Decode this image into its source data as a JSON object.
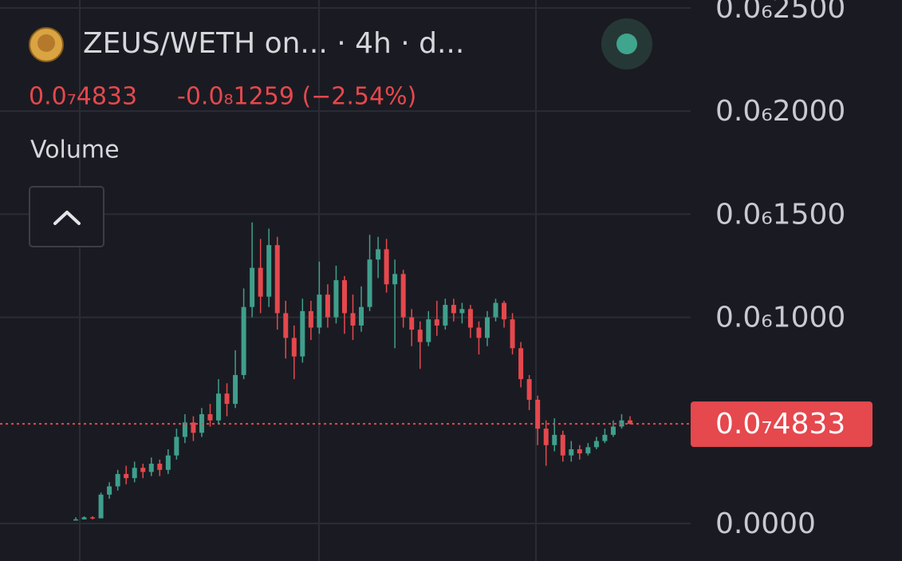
{
  "chart_data": {
    "type": "candlestick",
    "title": "ZEUS/WETH on...  · 4h · d...",
    "change": "-0.0₈1259 (−2.54%)",
    "indicator": "Volume",
    "last_price": {
      "value": 4.833e-08,
      "label": "0.0₇4833"
    },
    "up_color": "#3f9f8c",
    "down_color": "#e5484d",
    "grid": true,
    "ylim": [
      0,
      2.5e-07
    ],
    "yticks": [
      {
        "value": 0,
        "label": "0.0000"
      },
      {
        "value": 1e-07,
        "label": "0.0₆1000"
      },
      {
        "value": 1.5e-07,
        "label": "0.0₆1500"
      },
      {
        "value": 2e-07,
        "label": "0.0₆2000"
      },
      {
        "value": 2.5e-07,
        "label": "0.0₆2500"
      }
    ],
    "open": [
      2e-09,
      2e-09,
      3e-09,
      2.5e-09,
      1.4e-08,
      1.8e-08,
      2.4e-08,
      2.2e-08,
      2.7e-08,
      2.5e-08,
      2.9e-08,
      2.6e-08,
      3.3e-08,
      4.2e-08,
      4.9e-08,
      4.4e-08,
      5.3e-08,
      5e-08,
      6.3e-08,
      5.8e-08,
      7.2e-08,
      1.05e-07,
      1.24e-07,
      1.1e-07,
      1.35e-07,
      1.02e-07,
      9e-08,
      8.1e-08,
      1.03e-07,
      9.5e-08,
      1.11e-07,
      1e-07,
      1.18e-07,
      1.02e-07,
      9.6e-08,
      1.05e-07,
      1.28e-07,
      1.33e-07,
      1.16e-07,
      1.21e-07,
      1e-07,
      9.4e-08,
      8.8e-08,
      9.9e-08,
      9.6e-08,
      1.06e-07,
      1.02e-07,
      1.04e-07,
      9.5e-08,
      9e-08,
      1e-07,
      1.07e-07,
      9.9e-08,
      8.5e-08,
      7e-08,
      6e-08,
      4.6e-08,
      3.8e-08,
      4.3e-08,
      3.3e-08,
      3.6e-08,
      3.4e-08,
      3.7e-08,
      4e-08,
      4.3e-08,
      4.7e-08,
      5e-08
    ],
    "high": [
      3e-09,
      3.5e-09,
      3.5e-09,
      1.5e-08,
      2e-08,
      2.6e-08,
      2.8e-08,
      3e-08,
      2.9e-08,
      3.2e-08,
      3.1e-08,
      3.6e-08,
      4.6e-08,
      5.3e-08,
      5.2e-08,
      5.6e-08,
      5.8e-08,
      7e-08,
      6.8e-08,
      8.4e-08,
      1.14e-07,
      1.46e-07,
      1.38e-07,
      1.43e-07,
      1.39e-07,
      1.08e-07,
      9.6e-08,
      1.09e-07,
      1.08e-07,
      1.27e-07,
      1.16e-07,
      1.25e-07,
      1.2e-07,
      1.11e-07,
      1.15e-07,
      1.4e-07,
      1.39e-07,
      1.38e-07,
      1.28e-07,
      1.23e-07,
      1.04e-07,
      9.8e-08,
      1.03e-07,
      1.08e-07,
      1.09e-07,
      1.09e-07,
      1.07e-07,
      1.06e-07,
      9.8e-08,
      1.03e-07,
      1.09e-07,
      1.08e-07,
      1.02e-07,
      8.8e-08,
      7.2e-08,
      6.2e-08,
      5e-08,
      5.1e-08,
      4.5e-08,
      4e-08,
      3.8e-08,
      3.9e-08,
      4.2e-08,
      4.6e-08,
      5e-08,
      5.3e-08,
      5.2e-08
    ],
    "low": [
      1.5e-09,
      2e-09,
      2e-09,
      2.5e-09,
      1.2e-08,
      1.6e-08,
      1.9e-08,
      2e-08,
      2.2e-08,
      2.3e-08,
      2.3e-08,
      2.4e-08,
      3.1e-08,
      3.9e-08,
      4e-08,
      4.2e-08,
      4.7e-08,
      4.8e-08,
      5.2e-08,
      5.6e-08,
      7e-08,
      1e-07,
      1.02e-07,
      1.05e-07,
      9.4e-08,
      8e-08,
      7e-08,
      7.8e-08,
      8.9e-08,
      9.2e-08,
      9.5e-08,
      9.7e-08,
      9.2e-08,
      8.9e-08,
      9.3e-08,
      1.03e-07,
      1.19e-07,
      1.12e-07,
      8.5e-08,
      9.5e-08,
      8.6e-08,
      7.5e-08,
      8.6e-08,
      9.1e-08,
      9.4e-08,
      9.8e-08,
      9.7e-08,
      9e-08,
      8.2e-08,
      8.6e-08,
      9.8e-08,
      9.5e-08,
      8.2e-08,
      6.6e-08,
      5.5e-08,
      3.8e-08,
      2.8e-08,
      3.5e-08,
      3e-08,
      3e-08,
      3.1e-08,
      3.3e-08,
      3.6e-08,
      3.9e-08,
      4.2e-08,
      4.6e-08,
      4.8e-08
    ],
    "close": [
      2e-09,
      3e-09,
      2.5e-09,
      1.4e-08,
      1.8e-08,
      2.4e-08,
      2.2e-08,
      2.7e-08,
      2.5e-08,
      2.9e-08,
      2.6e-08,
      3.3e-08,
      4.2e-08,
      4.9e-08,
      4.4e-08,
      5.3e-08,
      5e-08,
      6.3e-08,
      5.8e-08,
      7.2e-08,
      1.05e-07,
      1.24e-07,
      1.1e-07,
      1.35e-07,
      1.02e-07,
      9e-08,
      8.1e-08,
      1.03e-07,
      9.5e-08,
      1.11e-07,
      1e-07,
      1.18e-07,
      1.02e-07,
      9.6e-08,
      1.05e-07,
      1.28e-07,
      1.33e-07,
      1.16e-07,
      1.21e-07,
      1e-07,
      9.4e-08,
      8.8e-08,
      9.9e-08,
      9.6e-08,
      1.06e-07,
      1.02e-07,
      1.04e-07,
      9.5e-08,
      9e-08,
      1e-07,
      1.07e-07,
      9.9e-08,
      8.5e-08,
      7e-08,
      6e-08,
      4.6e-08,
      3.8e-08,
      4.3e-08,
      3.3e-08,
      3.6e-08,
      3.4e-08,
      3.7e-08,
      4e-08,
      4.3e-08,
      4.7e-08,
      5e-08,
      4.833e-08
    ]
  }
}
